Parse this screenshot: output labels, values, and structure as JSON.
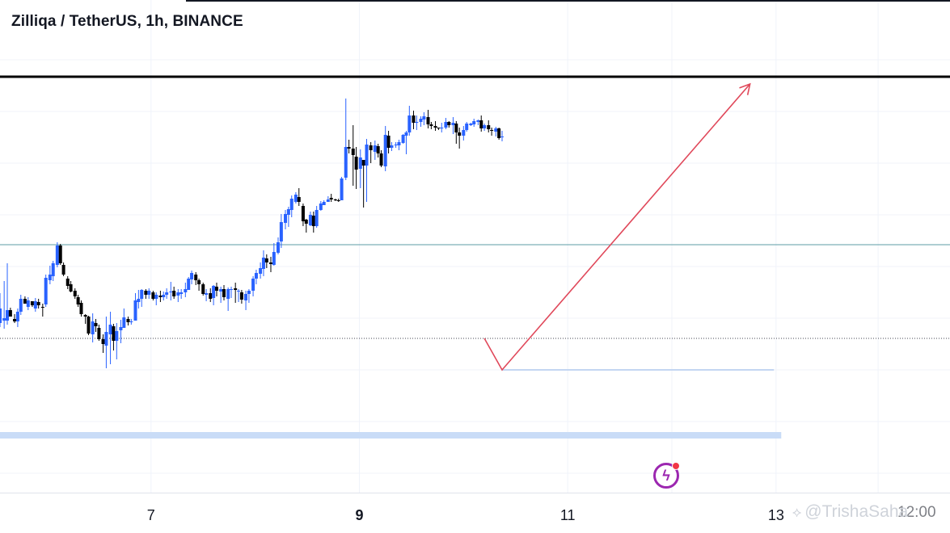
{
  "header": {
    "title": "Zilliqa / TetherUS, 1h, BINANCE"
  },
  "watermark": {
    "text": "@TrishaSaha",
    "icon": "binance-diamond-icon"
  },
  "bolt_button": {
    "icon": "lightning-bolt-icon",
    "badge": "notification-dot"
  },
  "colors": {
    "up": "#2962ff",
    "down": "#000000",
    "arrow": "#e0485a",
    "resistance": "#000000",
    "support_zone": "#c9dcf7",
    "mid_line": "#5c9ea6"
  },
  "chart_data": {
    "type": "candlestick",
    "title": "Zilliqa / TetherUS, 1h, BINANCE",
    "x_ticks": [
      {
        "day": 7,
        "label": "7",
        "bold": false
      },
      {
        "day": 9,
        "label": "9",
        "bold": true
      },
      {
        "day": 11,
        "label": "11",
        "bold": false
      },
      {
        "day": 13,
        "label": "13",
        "bold": false
      }
    ],
    "x_partial_label": "12:00",
    "x_range": [
      5.55,
      14.67
    ],
    "y_range": [
      0,
      610
    ],
    "grid": true,
    "candles": [
      [
        5.55,
        210,
        205,
        228,
        247
      ],
      [
        5.59,
        213,
        203,
        216,
        262
      ],
      [
        5.62,
        213,
        208,
        226,
        284
      ],
      [
        5.65,
        226,
        218,
        218,
        229
      ],
      [
        5.69,
        215,
        210,
        212,
        221
      ],
      [
        5.72,
        212,
        205,
        224,
        228
      ],
      [
        5.75,
        224,
        220,
        240,
        245
      ],
      [
        5.79,
        240,
        234,
        234,
        243
      ],
      [
        5.82,
        230,
        226,
        238,
        242
      ],
      [
        5.86,
        237,
        230,
        232,
        237
      ],
      [
        5.89,
        228,
        224,
        237,
        241
      ],
      [
        5.92,
        236,
        228,
        232,
        240
      ],
      [
        5.96,
        230,
        218,
        229,
        234
      ],
      [
        5.99,
        233,
        230,
        266,
        270
      ],
      [
        6.03,
        263,
        258,
        270,
        281
      ],
      [
        6.06,
        268,
        262,
        284,
        287
      ],
      [
        6.1,
        282,
        279,
        306,
        310
      ],
      [
        6.13,
        306,
        282,
        284,
        308
      ],
      [
        6.16,
        282,
        268,
        270,
        285
      ],
      [
        6.2,
        265,
        252,
        256,
        268
      ],
      [
        6.23,
        258,
        248,
        249,
        262
      ],
      [
        6.27,
        250,
        240,
        243,
        253
      ],
      [
        6.3,
        242,
        230,
        233,
        245
      ],
      [
        6.33,
        235,
        218,
        221,
        238
      ],
      [
        6.37,
        220,
        209,
        218,
        221
      ],
      [
        6.4,
        218,
        195,
        197,
        219
      ],
      [
        6.44,
        196,
        186,
        212,
        222
      ],
      [
        6.47,
        210,
        199,
        206,
        215
      ],
      [
        6.5,
        204,
        188,
        190,
        208
      ],
      [
        6.54,
        190,
        173,
        184,
        196
      ],
      [
        6.57,
        182,
        154,
        199,
        218
      ],
      [
        6.61,
        196,
        159,
        208,
        224
      ],
      [
        6.64,
        206,
        176,
        188,
        209
      ],
      [
        6.67,
        188,
        165,
        200,
        210
      ],
      [
        6.71,
        201,
        185,
        205,
        214
      ],
      [
        6.74,
        204,
        205,
        217,
        228
      ],
      [
        6.78,
        215,
        207,
        211,
        218
      ],
      [
        6.81,
        211,
        208,
        212,
        215
      ],
      [
        6.85,
        213,
        215,
        238,
        247
      ],
      [
        6.88,
        236,
        228,
        240,
        251
      ],
      [
        6.91,
        240,
        230,
        251,
        252
      ],
      [
        6.95,
        250,
        240,
        245,
        252
      ],
      [
        6.98,
        245,
        240,
        250,
        253
      ],
      [
        7.02,
        248,
        238,
        240,
        250
      ],
      [
        7.05,
        240,
        232,
        245,
        248
      ],
      [
        7.09,
        244,
        236,
        242,
        250
      ],
      [
        7.12,
        242,
        238,
        245,
        249
      ],
      [
        7.15,
        245,
        240,
        248,
        253
      ],
      [
        7.19,
        248,
        238,
        249,
        261
      ],
      [
        7.22,
        250,
        240,
        243,
        255
      ],
      [
        7.26,
        244,
        236,
        248,
        252
      ],
      [
        7.29,
        246,
        240,
        248,
        252
      ],
      [
        7.33,
        248,
        242,
        252,
        260
      ],
      [
        7.36,
        251,
        254,
        265,
        267
      ],
      [
        7.39,
        264,
        258,
        272,
        275
      ],
      [
        7.43,
        270,
        257,
        263,
        273
      ],
      [
        7.46,
        263,
        250,
        258,
        265
      ],
      [
        7.5,
        258,
        244,
        246,
        260
      ],
      [
        7.53,
        245,
        237,
        247,
        252
      ],
      [
        7.57,
        247,
        236,
        240,
        253
      ],
      [
        7.6,
        241,
        232,
        256,
        257
      ],
      [
        7.63,
        255,
        243,
        250,
        260
      ],
      [
        7.67,
        249,
        235,
        252,
        255
      ],
      [
        7.7,
        252,
        238,
        242,
        257
      ],
      [
        7.74,
        240,
        225,
        252,
        254
      ],
      [
        7.77,
        252,
        241,
        252,
        255
      ],
      [
        7.81,
        253,
        235,
        251,
        260
      ],
      [
        7.84,
        250,
        236,
        250,
        252
      ],
      [
        7.87,
        248,
        234,
        239,
        251
      ],
      [
        7.91,
        238,
        226,
        246,
        250
      ],
      [
        7.94,
        246,
        235,
        250,
        252
      ],
      [
        7.98,
        250,
        243,
        265,
        268
      ],
      [
        8.01,
        265,
        258,
        272,
        276
      ],
      [
        8.05,
        271,
        265,
        278,
        285
      ],
      [
        8.08,
        277,
        268,
        291,
        300
      ],
      [
        8.11,
        290,
        278,
        285,
        295
      ],
      [
        8.15,
        285,
        273,
        283,
        292
      ],
      [
        8.18,
        282,
        281,
        298,
        309
      ],
      [
        8.22,
        297,
        295,
        310,
        316
      ],
      [
        8.25,
        311,
        303,
        335,
        345
      ],
      [
        8.29,
        334,
        326,
        345,
        350
      ],
      [
        8.32,
        344,
        329,
        351,
        354
      ],
      [
        8.35,
        350,
        341,
        364,
        368
      ],
      [
        8.39,
        360,
        358,
        369,
        372
      ],
      [
        8.42,
        366,
        355,
        360,
        377
      ],
      [
        8.46,
        355,
        330,
        336,
        358
      ],
      [
        8.49,
        338,
        322,
        333,
        339
      ],
      [
        8.53,
        331,
        330,
        344,
        348
      ],
      [
        8.56,
        343,
        322,
        330,
        348
      ],
      [
        8.59,
        330,
        328,
        350,
        355
      ],
      [
        8.63,
        350,
        349,
        358,
        361
      ],
      [
        8.66,
        356,
        357,
        360,
        362
      ],
      [
        8.7,
        360,
        360,
        363,
        367
      ],
      [
        8.73,
        365,
        360,
        363,
        370
      ],
      [
        8.77,
        363,
        361,
        362,
        364
      ],
      [
        8.8,
        362,
        360,
        361,
        364
      ],
      [
        8.83,
        362,
        364,
        389,
        391
      ],
      [
        8.87,
        390,
        387,
        428,
        488
      ],
      [
        8.9,
        428,
        420,
        426,
        437
      ],
      [
        8.94,
        426,
        380,
        418,
        455
      ],
      [
        8.97,
        416,
        376,
        400,
        428
      ],
      [
        9.01,
        401,
        377,
        415,
        425
      ],
      [
        9.04,
        412,
        353,
        405,
        412
      ],
      [
        9.07,
        405,
        360,
        431,
        438
      ],
      [
        9.11,
        430,
        408,
        424,
        434
      ],
      [
        9.15,
        422,
        412,
        430,
        436
      ],
      [
        9.18,
        429,
        415,
        420,
        432
      ],
      [
        9.21,
        420,
        403,
        405,
        424
      ],
      [
        9.25,
        404,
        398,
        443,
        454
      ],
      [
        9.28,
        442,
        420,
        427,
        448
      ],
      [
        9.31,
        427,
        423,
        430,
        434
      ],
      [
        9.35,
        431,
        427,
        431,
        434
      ],
      [
        9.38,
        430,
        424,
        434,
        437
      ],
      [
        9.42,
        433,
        432,
        443,
        444
      ],
      [
        9.45,
        442,
        419,
        446,
        448
      ],
      [
        9.48,
        446,
        442,
        467,
        479
      ],
      [
        9.52,
        467,
        450,
        458,
        473
      ],
      [
        9.55,
        458,
        449,
        459,
        467
      ],
      [
        9.59,
        459,
        453,
        463,
        466
      ],
      [
        9.62,
        462,
        455,
        466,
        471
      ],
      [
        9.66,
        465,
        451,
        456,
        474
      ],
      [
        9.69,
        456,
        450,
        454,
        459
      ],
      [
        9.73,
        454,
        448,
        452,
        460
      ],
      [
        9.76,
        452,
        449,
        451,
        452
      ],
      [
        9.79,
        451,
        446,
        452,
        458
      ],
      [
        9.83,
        452,
        450,
        459,
        464
      ],
      [
        9.86,
        459,
        452,
        455,
        460
      ],
      [
        9.9,
        455,
        444,
        458,
        465
      ],
      [
        9.93,
        457,
        432,
        446,
        460
      ],
      [
        9.96,
        446,
        426,
        442,
        452
      ],
      [
        10.0,
        442,
        436,
        449,
        454
      ],
      [
        10.03,
        449,
        447,
        457,
        459
      ],
      [
        10.07,
        455,
        454,
        457,
        458
      ],
      [
        10.1,
        456,
        453,
        460,
        463
      ],
      [
        10.14,
        459,
        455,
        461,
        462
      ],
      [
        10.17,
        461,
        447,
        451,
        467
      ],
      [
        10.2,
        451,
        448,
        455,
        457
      ],
      [
        10.24,
        455,
        446,
        450,
        461
      ],
      [
        10.27,
        449,
        442,
        448,
        452
      ],
      [
        10.31,
        447,
        441,
        451,
        453
      ],
      [
        10.34,
        451,
        437,
        439,
        452
      ],
      [
        10.37,
        441,
        435,
        441,
        448
      ]
    ],
    "levels": [
      {
        "name": "resistance",
        "price": 515,
        "style": "solid-thick"
      },
      {
        "name": "mid",
        "price": 307,
        "style": "solid-thin"
      },
      {
        "name": "current",
        "price": 191,
        "style": "dotted"
      },
      {
        "name": "pullback",
        "price": 152,
        "style": "light",
        "from_day": 10.37,
        "to_day": 12.98
      },
      {
        "name": "support_zone",
        "price": 71,
        "style": "thick-band",
        "from_day": 5.55,
        "to_day": 13.05
      }
    ],
    "projection": [
      [
        10.2,
        191
      ],
      [
        10.37,
        152
      ],
      [
        12.75,
        506
      ]
    ]
  }
}
